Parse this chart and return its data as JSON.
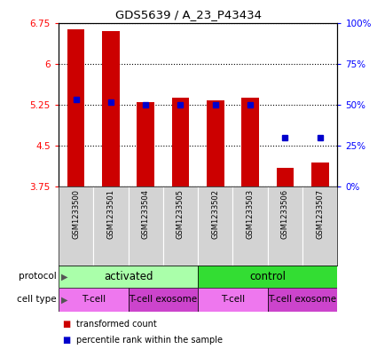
{
  "title": "GDS5639 / A_23_P43434",
  "samples": [
    "GSM1233500",
    "GSM1233501",
    "GSM1233504",
    "GSM1233505",
    "GSM1233502",
    "GSM1233503",
    "GSM1233506",
    "GSM1233507"
  ],
  "bar_values": [
    6.63,
    6.6,
    5.3,
    5.38,
    5.33,
    5.38,
    4.1,
    4.2
  ],
  "bar_bottom": 3.75,
  "percentile_values": [
    5.35,
    5.3,
    5.25,
    5.25,
    5.25,
    5.25,
    4.65,
    4.65
  ],
  "ylim": [
    3.75,
    6.75
  ],
  "yticks": [
    3.75,
    4.5,
    5.25,
    6.0,
    6.75
  ],
  "ytick_labels": [
    "3.75",
    "4.5",
    "5.25",
    "6",
    "6.75"
  ],
  "y2lim": [
    0,
    100
  ],
  "y2ticks": [
    0,
    25,
    50,
    75,
    100
  ],
  "y2tick_labels": [
    "0%",
    "25%",
    "50%",
    "75%",
    "100%"
  ],
  "bar_color": "#cc0000",
  "percentile_color": "#0000cc",
  "protocol_groups": [
    {
      "label": "activated",
      "start": 0,
      "end": 4,
      "color": "#aaffaa"
    },
    {
      "label": "control",
      "start": 4,
      "end": 8,
      "color": "#33dd33"
    }
  ],
  "cell_groups": [
    {
      "label": "T-cell",
      "start": 0,
      "end": 2,
      "color": "#ee77ee"
    },
    {
      "label": "T-cell exosome",
      "start": 2,
      "end": 4,
      "color": "#cc44cc"
    },
    {
      "label": "T-cell",
      "start": 4,
      "end": 6,
      "color": "#ee77ee"
    },
    {
      "label": "T-cell exosome",
      "start": 6,
      "end": 8,
      "color": "#cc44cc"
    }
  ],
  "legend_transformed": "transformed count",
  "legend_percentile": "percentile rank within the sample",
  "bar_width": 0.5
}
